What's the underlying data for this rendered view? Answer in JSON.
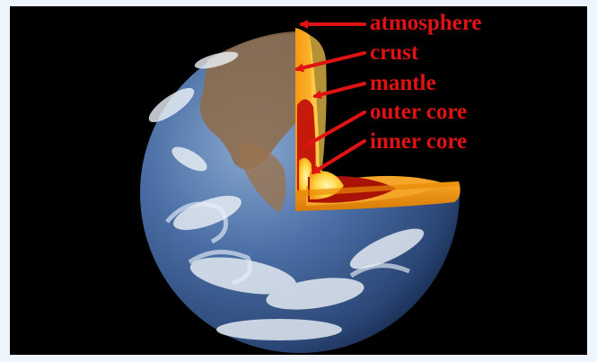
{
  "diagram": {
    "labels": {
      "atmosphere": "atmosphere",
      "crust": "crust",
      "mantle": "mantle",
      "outer_core": "outer core",
      "inner_core": "inner core"
    }
  },
  "colors": {
    "label_red": "#e01212",
    "frame_background": "#eef5fd",
    "space_background": "#000000",
    "ocean_blue": "#3a5f97",
    "crust_orange": "#f2a000",
    "mantle_orange": "#f7b71a",
    "outer_core_red": "#c61a08",
    "inner_core_yellow": "#ffd23a"
  }
}
